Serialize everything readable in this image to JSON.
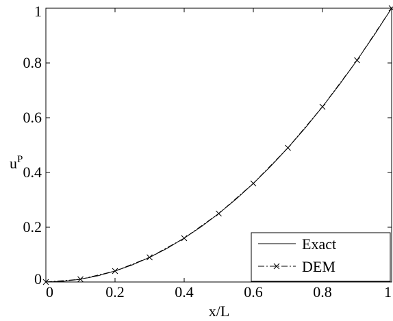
{
  "chart_data": {
    "type": "line",
    "title": "",
    "xlabel": "x/L",
    "ylabel": "u",
    "ylabel_superscript": "P",
    "xlim": [
      0,
      1
    ],
    "ylim": [
      0,
      1
    ],
    "xticks": [
      0,
      0.2,
      0.4,
      0.6,
      0.8,
      1
    ],
    "xtick_labels": [
      "0",
      "0.2",
      "0.4",
      "0.6",
      "0.8",
      "1"
    ],
    "yticks": [
      0,
      0.2,
      0.4,
      0.6,
      0.8,
      1
    ],
    "ytick_labels": [
      "0",
      "0.2",
      "0.4",
      "0.6",
      "0.8",
      "1"
    ],
    "grid": false,
    "legend_position": "bottom-right",
    "colors": {
      "line": "#000000",
      "background": "#ffffff"
    },
    "series": [
      {
        "name": "Exact",
        "style": "solid",
        "x": [
          0,
          0.05,
          0.1,
          0.15,
          0.2,
          0.25,
          0.3,
          0.35,
          0.4,
          0.45,
          0.5,
          0.55,
          0.6,
          0.65,
          0.7,
          0.75,
          0.8,
          0.85,
          0.9,
          0.95,
          1
        ],
        "y": [
          0,
          0.0025,
          0.01,
          0.0225,
          0.04,
          0.0625,
          0.09,
          0.1225,
          0.16,
          0.2025,
          0.25,
          0.3025,
          0.36,
          0.4225,
          0.49,
          0.5625,
          0.64,
          0.7225,
          0.81,
          0.9025,
          1
        ]
      },
      {
        "name": "DEM",
        "style": "dash-dot",
        "marker": "x",
        "x": [
          0,
          0.1,
          0.2,
          0.3,
          0.4,
          0.5,
          0.6,
          0.7,
          0.8,
          0.9,
          1
        ],
        "y": [
          0,
          0.01,
          0.04,
          0.09,
          0.16,
          0.25,
          0.36,
          0.49,
          0.64,
          0.81,
          1
        ]
      }
    ]
  }
}
